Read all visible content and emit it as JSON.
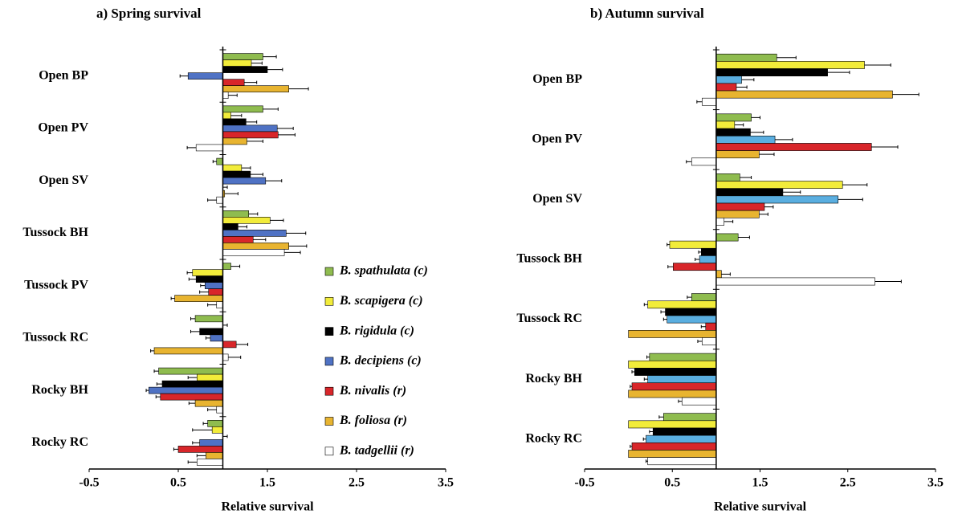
{
  "chart_data": [
    {
      "type": "bar",
      "orientation": "horizontal",
      "title": "a) Spring survival",
      "xlabel": "Relative survival",
      "categories": [
        "Open BP",
        "Open PV",
        "Open SV",
        "Tussock BH",
        "Tussock PV",
        "Tussock RC",
        "Rocky BH",
        "Rocky RC"
      ],
      "xlim": [
        -0.5,
        3.5
      ],
      "xticks": [
        -0.5,
        0.5,
        1.5,
        2.5,
        3.5
      ],
      "bar_base": 1,
      "legend": "right",
      "series": [
        {
          "name": "B. spathulata (c)",
          "color": "#8fbc4f",
          "values": [
            1.45,
            1.45,
            0.93,
            1.29,
            1.09,
            0.69,
            0.28,
            0.83
          ],
          "errors": [
            0.15,
            0.17,
            0.04,
            0.1,
            0.1,
            0.05,
            0.05,
            0.05
          ]
        },
        {
          "name": "B. scapigera (c)",
          "color": "#f2ec3a",
          "values": [
            1.32,
            1.09,
            1.21,
            1.53,
            0.66,
            1.0,
            0.71,
            0.88
          ],
          "errors": [
            0.12,
            0.12,
            0.1,
            0.15,
            0.06,
            0.05,
            0.1,
            0.22
          ]
        },
        {
          "name": "B. rigidula (c)",
          "color": "#000000",
          "values": [
            1.5,
            1.26,
            1.31,
            1.17,
            0.7,
            0.74,
            0.32,
            1.0
          ],
          "errors": [
            0.17,
            0.12,
            0.14,
            0.1,
            0.08,
            0.1,
            0.06,
            0.05
          ]
        },
        {
          "name": "B. decipiens (c)",
          "color": "#4f72c4",
          "values": [
            0.61,
            1.61,
            1.48,
            1.71,
            0.8,
            0.86,
            0.17,
            0.74
          ],
          "errors": [
            0.09,
            0.18,
            0.18,
            0.22,
            0.05,
            0.05,
            0.03,
            0.08
          ]
        },
        {
          "name": "B. nivalis (r)",
          "color": "#d8262a",
          "values": [
            1.24,
            1.62,
            1.0,
            1.34,
            0.84,
            1.15,
            0.3,
            0.5
          ],
          "errors": [
            0.14,
            0.19,
            0.05,
            0.14,
            0.1,
            0.13,
            0.05,
            0.05
          ]
        },
        {
          "name": "B. foliosa (r)",
          "color": "#e8b430",
          "values": [
            1.74,
            1.27,
            1.02,
            1.74,
            0.46,
            0.23,
            0.69,
            0.81
          ],
          "errors": [
            0.22,
            0.18,
            0.15,
            0.2,
            0.04,
            0.04,
            0.07,
            0.1
          ]
        },
        {
          "name": "B. tadgellii (r)",
          "color": "#ffffff",
          "values": [
            1.06,
            0.7,
            0.93,
            1.69,
            0.93,
            1.06,
            0.93,
            0.71
          ],
          "errors": [
            0.1,
            0.1,
            0.1,
            0.18,
            0.1,
            0.14,
            0.1,
            0.1
          ]
        }
      ]
    },
    {
      "type": "bar",
      "orientation": "horizontal",
      "title": "b) Autumn survival",
      "xlabel": "Relative survival",
      "categories": [
        "Open BP",
        "Open PV",
        "Open SV",
        "Tussock BH",
        "Tussock RC",
        "Rocky BH",
        "Rocky RC"
      ],
      "xlim": [
        -0.5,
        3.5
      ],
      "xticks": [
        -0.5,
        0.5,
        1.5,
        2.5,
        3.5
      ],
      "bar_base": 1,
      "series": [
        {
          "color": "#8fbc4f",
          "values": [
            1.69,
            1.4,
            1.27,
            1.25,
            0.72,
            0.24,
            0.4
          ],
          "errors": [
            0.22,
            0.1,
            0.13,
            0.13,
            0.05,
            0.03,
            0.05
          ]
        },
        {
          "color": "#f2ec3a",
          "values": [
            2.69,
            1.21,
            2.44,
            0.47,
            0.22,
            0.0,
            0.0
          ],
          "errors": [
            0.3,
            0.1,
            0.28,
            0.03,
            0.04,
            0.0,
            0.0
          ]
        },
        {
          "color": "#000000",
          "values": [
            2.27,
            1.39,
            1.76,
            0.83,
            0.42,
            0.07,
            0.28
          ],
          "errors": [
            0.25,
            0.15,
            0.2,
            0.03,
            0.05,
            0.03,
            0.04
          ]
        },
        {
          "color": "#5aaee0",
          "values": [
            1.29,
            1.67,
            2.39,
            0.81,
            0.44,
            0.22,
            0.2
          ],
          "errors": [
            0.14,
            0.2,
            0.28,
            0.05,
            0.04,
            0.04,
            0.03
          ]
        },
        {
          "color": "#d8262a",
          "values": [
            1.23,
            2.77,
            1.55,
            0.51,
            0.88,
            0.04,
            0.04
          ],
          "errors": [
            0.12,
            0.3,
            0.1,
            0.06,
            0.05,
            0.02,
            0.02
          ]
        },
        {
          "color": "#e8b430",
          "values": [
            3.01,
            1.49,
            1.49,
            1.06,
            0.0,
            0.0,
            0.0
          ],
          "errors": [
            0.3,
            0.17,
            0.1,
            0.1,
            0.0,
            0.0,
            0.0
          ]
        },
        {
          "color": "#ffffff",
          "values": [
            0.84,
            0.72,
            1.09,
            2.81,
            0.84,
            0.61,
            0.22
          ],
          "errors": [
            0.06,
            0.06,
            0.1,
            0.3,
            0.05,
            0.04,
            0.02
          ]
        }
      ]
    }
  ]
}
